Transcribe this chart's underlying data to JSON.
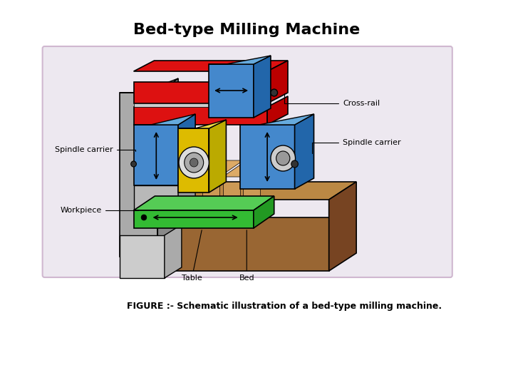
{
  "title": "Bed-type Milling Machine",
  "title_fontsize": 16,
  "title_fontweight": "bold",
  "caption": "FIGURE :- Schematic illustration of a bed-type milling machine.",
  "caption_fontsize": 9,
  "bg_color": "#ffffff",
  "box_facecolor": "#ede8f0",
  "box_edgecolor": "#d0b8d0",
  "label_cross_rail": "Cross-rail",
  "label_spindle_carrier_right": "Spindle carrier",
  "label_spindle_carrier_left": "Spindle carrier",
  "label_workpiece": "Workpiece",
  "label_table": "Table",
  "label_bed": "Bed",
  "label_fontsize": 8,
  "colors": {
    "red_rail": "#dd1111",
    "red_rail_dark": "#bb0000",
    "blue_sc": "#4488cc",
    "blue_sc_dark": "#2266aa",
    "blue_sc_top": "#66aadd",
    "yellow": "#ddbb00",
    "yellow_dark": "#bbaa00",
    "yellow_top": "#eedd44",
    "green_table": "#33bb33",
    "green_table_dark": "#229922",
    "green_table_top": "#55cc55",
    "brown_bed": "#996633",
    "brown_bed_dark": "#774422",
    "brown_bed_top": "#bb8844",
    "gray_col": "#aaaaaa",
    "gray_col_light": "#cccccc",
    "gray_col_dark": "#888888",
    "silver": "#c0c0c0",
    "black": "#000000",
    "white": "#ffffff"
  }
}
